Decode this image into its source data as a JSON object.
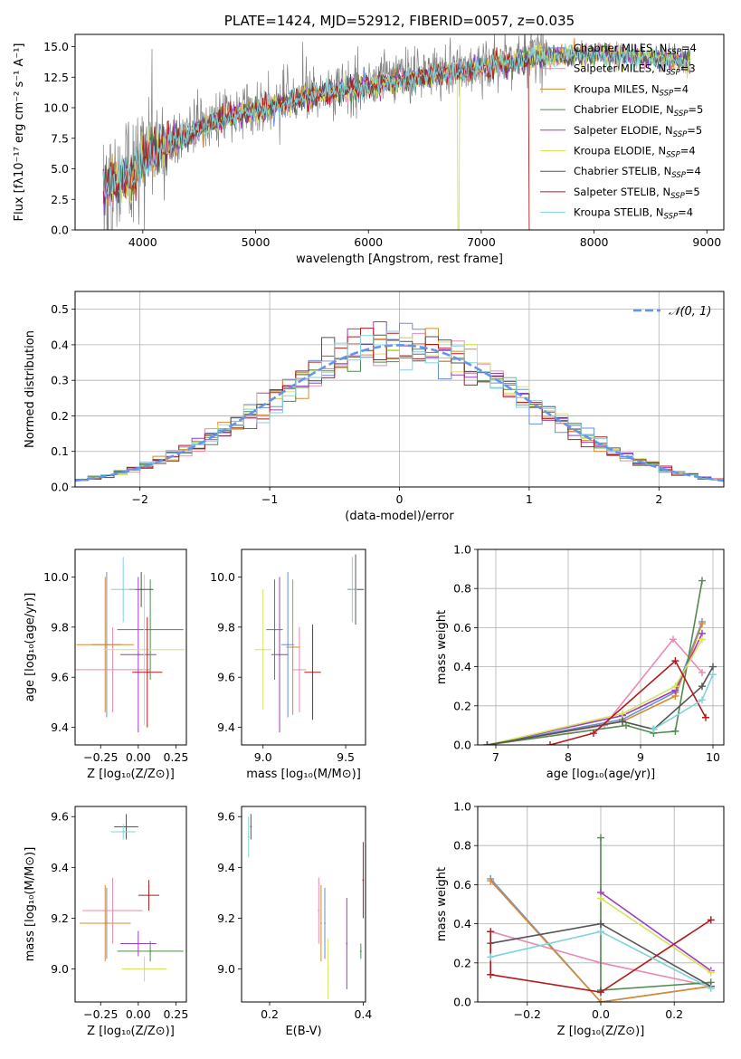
{
  "colors": {
    "chabrier_miles": "#6a8fd4",
    "salpeter_miles": "#e88ab5",
    "kroupa_miles": "#d98a2e",
    "chabrier_elodie": "#4f8a4f",
    "salpeter_elodie": "#9a3fc0",
    "kroupa_elodie": "#d7e35a",
    "chabrier_stelib": "#555555",
    "salpeter_stelib": "#b01c1c",
    "kroupa_stelib": "#7fd3d8",
    "gauss": "#6495ed",
    "data": "#808080"
  },
  "legend": [
    {
      "name": "Chabrier MILES, N",
      "sub": "SSP",
      "tail": "=4",
      "color": "chabrier_miles"
    },
    {
      "name": "Salpeter MILES, N",
      "sub": "SSP",
      "tail": "=3",
      "color": "salpeter_miles"
    },
    {
      "name": "Kroupa MILES, N",
      "sub": "SSP",
      "tail": "=4",
      "color": "kroupa_miles"
    },
    {
      "name": "Chabrier ELODIE, N",
      "sub": "SSP",
      "tail": "=5",
      "color": "chabrier_elodie"
    },
    {
      "name": "Salpeter ELODIE, N",
      "sub": "SSP",
      "tail": "=5",
      "color": "salpeter_elodie"
    },
    {
      "name": "Kroupa ELODIE, N",
      "sub": "SSP",
      "tail": "=4",
      "color": "kroupa_elodie"
    },
    {
      "name": "Chabrier STELIB, N",
      "sub": "SSP",
      "tail": "=4",
      "color": "chabrier_stelib"
    },
    {
      "name": "Salpeter STELIB, N",
      "sub": "SSP",
      "tail": "=5",
      "color": "salpeter_stelib"
    },
    {
      "name": "Kroupa STELIB, N",
      "sub": "SSP",
      "tail": "=4",
      "color": "kroupa_stelib"
    }
  ],
  "chart_data": [
    {
      "id": "spectrum",
      "type": "line",
      "title": "PLATE=1424, MJD=52912, FIBERID=0057, z=0.035",
      "xlabel": "wavelength [Angstrom, rest frame]",
      "ylabel": "Flux [fλ10⁻¹⁷ erg cm⁻² s⁻¹ A⁻¹]",
      "xlim": [
        3400,
        9150
      ],
      "ylim": [
        0,
        16
      ],
      "x_ticks": [
        "4000",
        "5000",
        "6000",
        "7000",
        "8000",
        "9000"
      ],
      "y_ticks": [
        "0.0",
        "2.5",
        "5.0",
        "7.5",
        "10.0",
        "12.5",
        "15.0"
      ],
      "grid": false,
      "legend_position": "top-right",
      "continuum": [
        [
          3650,
          3.8
        ],
        [
          3900,
          4.5
        ],
        [
          4000,
          6.2
        ],
        [
          4300,
          7.5
        ],
        [
          4600,
          9.0
        ],
        [
          5000,
          10.0
        ],
        [
          5500,
          11.2
        ],
        [
          6000,
          12.0
        ],
        [
          6500,
          12.8
        ],
        [
          7000,
          13.5
        ],
        [
          7500,
          14.4
        ],
        [
          8000,
          14.6
        ],
        [
          8500,
          14.3
        ],
        [
          8850,
          13.9
        ]
      ],
      "features": {
        "red_cut_model": "Salpeter STELIB",
        "red_cut_at": 7420,
        "yellow_cut_model": "Kroupa ELODIE",
        "yellow_cut_at": 6790
      }
    },
    {
      "id": "residuals",
      "type": "histogram",
      "xlabel": "(data-model)/error",
      "ylabel": "Normed distribution",
      "xlim": [
        -2.5,
        2.5
      ],
      "ylim": [
        0,
        0.55
      ],
      "x_ticks": [
        "−2",
        "−1",
        "0",
        "1",
        "2"
      ],
      "y_ticks": [
        "0.0",
        "0.1",
        "0.2",
        "0.3",
        "0.4",
        "0.5"
      ],
      "grid": true,
      "legend": "𝒩(0, 1)",
      "legend_position": "top-right",
      "bin_width": 0.1
    },
    {
      "id": "age_vs_Z",
      "type": "scatter",
      "xlabel": "Z [log₁₀(Z/Z⊙)]",
      "ylabel": "age  [log₁₀(age/yr)]",
      "xlim": [
        -0.42,
        0.32
      ],
      "ylim": [
        9.33,
        10.11
      ],
      "x_ticks": [
        "−0.25",
        "0.00",
        "0.25"
      ],
      "y_ticks": [
        "9.4",
        "9.6",
        "9.8",
        "10.0"
      ],
      "points": [
        {
          "model": "chabrier_miles",
          "x": -0.21,
          "y": 9.73,
          "xerr": 0.1,
          "yerr": 0.29
        },
        {
          "model": "salpeter_miles",
          "x": -0.17,
          "y": 9.63,
          "xerr": 0.25,
          "yerr": 0.17
        },
        {
          "model": "kroupa_miles",
          "x": -0.22,
          "y": 9.73,
          "xerr": 0.19,
          "yerr": 0.27
        },
        {
          "model": "chabrier_elodie",
          "x": 0.08,
          "y": 9.79,
          "xerr": 0.22,
          "yerr": 0.2
        },
        {
          "model": "salpeter_elodie",
          "x": 0.0,
          "y": 9.69,
          "xerr": 0.12,
          "yerr": 0.31
        },
        {
          "model": "kroupa_elodie",
          "x": 0.04,
          "y": 9.71,
          "xerr": 0.27,
          "yerr": 0.3
        },
        {
          "model": "chabrier_stelib",
          "x": 0.02,
          "y": 9.95,
          "xerr": 0.08,
          "yerr": 0.07
        },
        {
          "model": "salpeter_stelib",
          "x": 0.06,
          "y": 9.62,
          "xerr": 0.1,
          "yerr": 0.22
        },
        {
          "model": "kroupa_stelib",
          "x": -0.1,
          "y": 9.95,
          "xerr": 0.08,
          "yerr": 0.13
        }
      ]
    },
    {
      "id": "age_vs_mass",
      "type": "scatter",
      "xlabel": "mass [log₁₀(M/M⊙)]",
      "xlim": [
        8.87,
        9.62
      ],
      "ylim": [
        9.33,
        10.11
      ],
      "x_ticks": [
        "9.0",
        "9.5"
      ],
      "y_ticks": [
        "9.4",
        "9.6",
        "9.8",
        "10.0"
      ],
      "points": [
        {
          "model": "chabrier_miles",
          "x": 9.15,
          "y": 9.73,
          "xerr": 0.04,
          "yerr": 0.29
        },
        {
          "model": "salpeter_miles",
          "x": 9.22,
          "y": 9.63,
          "xerr": 0.04,
          "yerr": 0.17
        },
        {
          "model": "kroupa_miles",
          "x": 9.18,
          "y": 9.72,
          "xerr": 0.04,
          "yerr": 0.27
        },
        {
          "model": "chabrier_elodie",
          "x": 9.07,
          "y": 9.79,
          "xerr": 0.05,
          "yerr": 0.2
        },
        {
          "model": "salpeter_elodie",
          "x": 9.1,
          "y": 9.69,
          "xerr": 0.05,
          "yerr": 0.31
        },
        {
          "model": "kroupa_elodie",
          "x": 9.0,
          "y": 9.71,
          "xerr": 0.05,
          "yerr": 0.24
        },
        {
          "model": "chabrier_stelib",
          "x": 9.56,
          "y": 9.95,
          "xerr": 0.05,
          "yerr": 0.14
        },
        {
          "model": "salpeter_stelib",
          "x": 9.3,
          "y": 9.62,
          "xerr": 0.05,
          "yerr": 0.19
        },
        {
          "model": "kroupa_stelib",
          "x": 9.54,
          "y": 9.95,
          "xerr": 0.03,
          "yerr": 0.13
        }
      ]
    },
    {
      "id": "weight_vs_age",
      "type": "line",
      "ylabel": "mass weight",
      "xlabel": "age  [log₁₀(age/yr)]",
      "xlim": [
        6.75,
        10.15
      ],
      "ylim": [
        0,
        1.0
      ],
      "x_ticks": [
        "7",
        "8",
        "9",
        "10"
      ],
      "y_ticks": [
        "0.0",
        "0.2",
        "0.4",
        "0.6",
        "0.8",
        "1.0"
      ],
      "grid": true,
      "series": [
        {
          "model": "chabrier_miles",
          "x": [
            6.88,
            8.75,
            9.48,
            9.85
          ],
          "y": [
            0.0,
            0.13,
            0.27,
            0.63
          ]
        },
        {
          "model": "salpeter_miles",
          "x": [
            6.88,
            8.5,
            9.45,
            9.85
          ],
          "y": [
            0.0,
            0.1,
            0.54,
            0.37
          ]
        },
        {
          "model": "kroupa_miles",
          "x": [
            6.88,
            8.75,
            9.48,
            9.85
          ],
          "y": [
            0.0,
            0.12,
            0.25,
            0.62
          ]
        },
        {
          "model": "chabrier_elodie",
          "x": [
            6.88,
            8.8,
            9.18,
            9.48,
            9.85
          ],
          "y": [
            0.0,
            0.1,
            0.06,
            0.07,
            0.84
          ]
        },
        {
          "model": "salpeter_elodie",
          "x": [
            6.88,
            8.75,
            9.48,
            9.85
          ],
          "y": [
            0.0,
            0.15,
            0.28,
            0.57
          ]
        },
        {
          "model": "kroupa_elodie",
          "x": [
            6.88,
            8.75,
            9.48,
            9.85
          ],
          "y": [
            0.0,
            0.16,
            0.3,
            0.54
          ]
        },
        {
          "model": "chabrier_stelib",
          "x": [
            6.88,
            8.75,
            9.18,
            9.85,
            10.0
          ],
          "y": [
            0.0,
            0.12,
            0.08,
            0.3,
            0.4
          ]
        },
        {
          "model": "salpeter_stelib",
          "x": [
            7.75,
            8.35,
            9.48,
            9.9
          ],
          "y": [
            0.0,
            0.06,
            0.43,
            0.14
          ]
        },
        {
          "model": "kroupa_stelib",
          "x": [
            9.18,
            9.85,
            10.0
          ],
          "y": [
            0.08,
            0.23,
            0.36
          ]
        }
      ]
    },
    {
      "id": "mass_vs_Z",
      "type": "scatter",
      "xlabel": "Z [log₁₀(Z/Z⊙)]",
      "ylabel": "mass [log₁₀(M/M⊙)]",
      "xlim": [
        -0.42,
        0.32
      ],
      "ylim": [
        8.87,
        9.64
      ],
      "x_ticks": [
        "−0.25",
        "0.00",
        "0.25"
      ],
      "y_ticks": [
        "9.0",
        "9.2",
        "9.4",
        "9.6"
      ],
      "points": [
        {
          "model": "chabrier_miles",
          "x": -0.21,
          "y": 9.18,
          "xerr": 0.14,
          "yerr": 0.14
        },
        {
          "model": "salpeter_miles",
          "x": -0.17,
          "y": 9.23,
          "xerr": 0.2,
          "yerr": 0.13
        },
        {
          "model": "kroupa_miles",
          "x": -0.22,
          "y": 9.18,
          "xerr": 0.17,
          "yerr": 0.15
        },
        {
          "model": "chabrier_elodie",
          "x": 0.08,
          "y": 9.07,
          "xerr": 0.22,
          "yerr": 0.04
        },
        {
          "model": "salpeter_elodie",
          "x": 0.0,
          "y": 9.1,
          "xerr": 0.12,
          "yerr": 0.05
        },
        {
          "model": "kroupa_elodie",
          "x": 0.04,
          "y": 9.0,
          "xerr": 0.15,
          "yerr": 0.05
        },
        {
          "model": "chabrier_stelib",
          "x": -0.08,
          "y": 9.56,
          "xerr": 0.08,
          "yerr": 0.05
        },
        {
          "model": "salpeter_stelib",
          "x": 0.07,
          "y": 9.29,
          "xerr": 0.07,
          "yerr": 0.06
        },
        {
          "model": "kroupa_stelib",
          "x": -0.1,
          "y": 9.54,
          "xerr": 0.08,
          "yerr": 0.03
        }
      ]
    },
    {
      "id": "mass_vs_ebv",
      "type": "scatter",
      "xlabel": "E(B-V)",
      "xlim": [
        0.14,
        0.405
      ],
      "ylim": [
        8.87,
        9.64
      ],
      "x_ticks": [
        "0.2",
        "0.4"
      ],
      "y_ticks": [
        "9.0",
        "9.2",
        "9.4",
        "9.6"
      ],
      "points": [
        {
          "model": "chabrier_miles",
          "x": 0.318,
          "y": 9.18,
          "yerr": 0.14
        },
        {
          "model": "salpeter_miles",
          "x": 0.305,
          "y": 9.23,
          "yerr": 0.13
        },
        {
          "model": "kroupa_miles",
          "x": 0.31,
          "y": 9.18,
          "yerr": 0.15
        },
        {
          "model": "chabrier_elodie",
          "x": 0.395,
          "y": 9.07,
          "yerr": 0.03
        },
        {
          "model": "salpeter_elodie",
          "x": 0.365,
          "y": 9.1,
          "yerr": 0.18
        },
        {
          "model": "kroupa_elodie",
          "x": 0.325,
          "y": 9.0,
          "yerr": 0.12
        },
        {
          "model": "chabrier_stelib",
          "x": 0.16,
          "y": 9.56,
          "yerr": 0.05
        },
        {
          "model": "salpeter_stelib",
          "x": 0.4,
          "y": 9.35,
          "yerr": 0.15
        },
        {
          "model": "kroupa_stelib",
          "x": 0.155,
          "y": 9.52,
          "yerr": 0.08
        }
      ]
    },
    {
      "id": "weight_vs_Z",
      "type": "line",
      "ylabel": "mass weight",
      "xlabel": "Z [log₁₀(Z/Z⊙)]",
      "xlim": [
        -0.335,
        0.335
      ],
      "ylim": [
        0,
        1.0
      ],
      "x_ticks": [
        "−0.2",
        "0.0",
        "0.2"
      ],
      "y_ticks": [
        "0.0",
        "0.2",
        "0.4",
        "0.6",
        "0.8",
        "1.0"
      ],
      "grid": true,
      "series": [
        {
          "model": "chabrier_miles",
          "x": [
            -0.3,
            0.0,
            0.3
          ],
          "y": [
            0.63,
            0.0,
            0.08
          ]
        },
        {
          "model": "salpeter_miles",
          "x": [
            -0.3,
            0.0,
            0.3
          ],
          "y": [
            0.36,
            0.2,
            0.08
          ]
        },
        {
          "model": "kroupa_miles",
          "x": [
            -0.3,
            0.0,
            0.3
          ],
          "y": [
            0.62,
            0.0,
            0.08
          ]
        },
        {
          "model": "chabrier_elodie",
          "x": [
            0.0,
            0.0,
            0.0,
            0.3
          ],
          "y": [
            0.84,
            0.06,
            0.06,
            0.1
          ]
        },
        {
          "model": "salpeter_elodie",
          "x": [
            0.0,
            0.3
          ],
          "y": [
            0.56,
            0.16
          ]
        },
        {
          "model": "kroupa_elodie",
          "x": [
            0.0,
            0.3
          ],
          "y": [
            0.53,
            0.15
          ]
        },
        {
          "model": "chabrier_stelib",
          "x": [
            -0.3,
            0.0,
            0.3
          ],
          "y": [
            0.3,
            0.4,
            0.08
          ]
        },
        {
          "model": "salpeter_stelib",
          "x": [
            -0.3,
            -0.3,
            0.0,
            0.3
          ],
          "y": [
            0.36,
            0.14,
            0.05,
            0.42
          ]
        },
        {
          "model": "kroupa_stelib",
          "x": [
            -0.3,
            0.0,
            0.3
          ],
          "y": [
            0.23,
            0.36,
            0.07
          ]
        }
      ]
    }
  ]
}
